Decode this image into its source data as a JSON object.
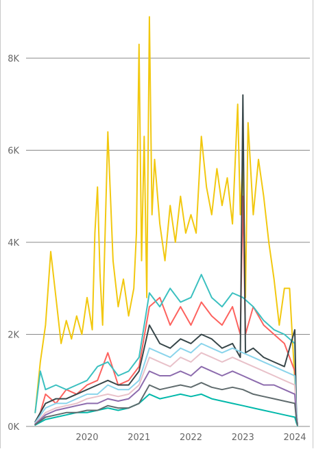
{
  "chart_data": {
    "type": "line",
    "title": "",
    "xlabel": "",
    "ylabel": "",
    "grid": true,
    "legend": "none",
    "x_range": [
      2019.0,
      2024.05
    ],
    "ylim": [
      0,
      9000
    ],
    "y_ticks": [
      {
        "value": 0,
        "label": "0K"
      },
      {
        "value": 2000,
        "label": "2K"
      },
      {
        "value": 4000,
        "label": "4K"
      },
      {
        "value": 6000,
        "label": "6K"
      },
      {
        "value": 8000,
        "label": "8K"
      }
    ],
    "x_ticks": [
      {
        "value": 2020,
        "label": "2020"
      },
      {
        "value": 2021,
        "label": "2021"
      },
      {
        "value": 2022,
        "label": "2022"
      },
      {
        "value": 2023,
        "label": "2023"
      },
      {
        "value": 2024,
        "label": "2024"
      }
    ],
    "series": [
      {
        "color": "#F2C80F",
        "x": [
          2019.0,
          2019.1,
          2019.2,
          2019.3,
          2019.4,
          2019.5,
          2019.6,
          2019.7,
          2019.8,
          2019.9,
          2020.0,
          2020.1,
          2020.15,
          2020.2,
          2020.25,
          2020.3,
          2020.4,
          2020.5,
          2020.6,
          2020.7,
          2020.8,
          2020.9,
          2020.95,
          2021.0,
          2021.05,
          2021.1,
          2021.15,
          2021.2,
          2021.25,
          2021.3,
          2021.4,
          2021.5,
          2021.6,
          2021.7,
          2021.8,
          2021.9,
          2022.0,
          2022.1,
          2022.2,
          2022.3,
          2022.4,
          2022.5,
          2022.6,
          2022.7,
          2022.8,
          2022.9,
          2022.95,
          2023.0,
          2023.05,
          2023.1,
          2023.2,
          2023.3,
          2023.4,
          2023.5,
          2023.6,
          2023.7,
          2023.8,
          2023.9,
          2024.0,
          2024.02,
          2024.05
        ],
        "y": [
          300,
          1400,
          2200,
          3800,
          2800,
          1800,
          2300,
          1900,
          2400,
          2000,
          2800,
          2100,
          4200,
          5200,
          3300,
          2200,
          6400,
          3600,
          2600,
          3200,
          2400,
          3000,
          4200,
          8300,
          3600,
          6300,
          2800,
          8900,
          4600,
          5800,
          4400,
          3600,
          4800,
          4000,
          5000,
          4200,
          4600,
          4200,
          6300,
          5200,
          4600,
          5600,
          4800,
          5400,
          4400,
          7000,
          4600,
          5800,
          2800,
          6600,
          4600,
          5800,
          5000,
          4000,
          3200,
          2200,
          3000,
          3000,
          1000,
          300,
          50
        ]
      },
      {
        "color": "#FD625E",
        "x": [
          2019.0,
          2019.1,
          2019.2,
          2019.4,
          2019.6,
          2019.8,
          2020.0,
          2020.2,
          2020.4,
          2020.6,
          2020.8,
          2021.0,
          2021.2,
          2021.4,
          2021.6,
          2021.8,
          2022.0,
          2022.2,
          2022.4,
          2022.6,
          2022.8,
          2022.95,
          2023.0,
          2023.05,
          2023.2,
          2023.4,
          2023.6,
          2023.8,
          2024.0,
          2024.03,
          2024.05
        ],
        "y": [
          50,
          300,
          700,
          500,
          800,
          700,
          900,
          1000,
          1600,
          900,
          1000,
          1300,
          2600,
          2800,
          2200,
          2600,
          2200,
          2700,
          2400,
          2200,
          2600,
          2000,
          5000,
          2000,
          2600,
          2200,
          2000,
          1800,
          1200,
          300,
          50
        ]
      },
      {
        "color": "#3BC0C0",
        "x": [
          2019.0,
          2019.1,
          2019.2,
          2019.4,
          2019.6,
          2019.8,
          2020.0,
          2020.2,
          2020.4,
          2020.6,
          2020.8,
          2021.0,
          2021.2,
          2021.4,
          2021.6,
          2021.8,
          2022.0,
          2022.2,
          2022.4,
          2022.6,
          2022.8,
          2023.0,
          2023.2,
          2023.4,
          2023.6,
          2023.8,
          2024.0,
          2024.03,
          2024.05
        ],
        "y": [
          300,
          1200,
          800,
          900,
          800,
          900,
          1000,
          1300,
          1400,
          1100,
          1200,
          1500,
          2900,
          2600,
          3000,
          2700,
          2800,
          3300,
          2800,
          2600,
          2900,
          2800,
          2600,
          2300,
          2100,
          2000,
          1800,
          400,
          50
        ]
      },
      {
        "color": "#374649",
        "x": [
          2019.0,
          2019.2,
          2019.4,
          2019.6,
          2019.8,
          2020.0,
          2020.2,
          2020.4,
          2020.6,
          2020.8,
          2021.0,
          2021.2,
          2021.4,
          2021.6,
          2021.8,
          2022.0,
          2022.2,
          2022.4,
          2022.6,
          2022.8,
          2022.95,
          2023.0,
          2023.05,
          2023.2,
          2023.4,
          2023.6,
          2023.8,
          2024.0,
          2024.03,
          2024.05
        ],
        "y": [
          100,
          500,
          600,
          600,
          700,
          800,
          900,
          1000,
          900,
          900,
          1200,
          2200,
          1800,
          1700,
          1900,
          1800,
          2000,
          1900,
          1700,
          1800,
          1500,
          7200,
          1600,
          1700,
          1500,
          1400,
          1300,
          2100,
          300,
          50
        ]
      },
      {
        "color": "#8AD4EB",
        "x": [
          2019.0,
          2019.2,
          2019.4,
          2019.6,
          2019.8,
          2020.0,
          2020.2,
          2020.4,
          2020.6,
          2020.8,
          2021.0,
          2021.2,
          2021.4,
          2021.6,
          2021.8,
          2022.0,
          2022.2,
          2022.4,
          2022.6,
          2022.8,
          2023.0,
          2023.2,
          2023.4,
          2023.6,
          2023.8,
          2024.0,
          2024.03,
          2024.05
        ],
        "y": [
          80,
          400,
          500,
          500,
          600,
          700,
          700,
          900,
          800,
          800,
          1000,
          1700,
          1600,
          1500,
          1700,
          1600,
          1800,
          1700,
          1600,
          1700,
          1600,
          1500,
          1400,
          1300,
          1200,
          1100,
          300,
          50
        ]
      },
      {
        "color": "#E8C1C9",
        "x": [
          2019.0,
          2019.2,
          2019.4,
          2019.6,
          2019.8,
          2020.0,
          2020.2,
          2020.4,
          2020.6,
          2020.8,
          2021.0,
          2021.2,
          2021.4,
          2021.6,
          2021.8,
          2022.0,
          2022.2,
          2022.4,
          2022.6,
          2022.8,
          2023.0,
          2023.2,
          2023.4,
          2023.6,
          2023.8,
          2024.0,
          2024.03,
          2024.05
        ],
        "y": [
          60,
          300,
          400,
          450,
          500,
          600,
          650,
          700,
          650,
          700,
          900,
          1500,
          1400,
          1300,
          1500,
          1400,
          1600,
          1500,
          1400,
          1500,
          1400,
          1300,
          1200,
          1100,
          1000,
          900,
          250,
          50
        ]
      },
      {
        "color": "#8C6BAD",
        "x": [
          2019.0,
          2019.2,
          2019.4,
          2019.6,
          2019.8,
          2020.0,
          2020.2,
          2020.4,
          2020.6,
          2020.8,
          2021.0,
          2021.2,
          2021.4,
          2021.6,
          2021.8,
          2022.0,
          2022.2,
          2022.4,
          2022.6,
          2022.8,
          2023.0,
          2023.2,
          2023.4,
          2023.6,
          2023.8,
          2024.0,
          2024.03,
          2024.05
        ],
        "y": [
          50,
          250,
          350,
          400,
          450,
          500,
          500,
          600,
          550,
          600,
          800,
          1200,
          1100,
          1100,
          1200,
          1100,
          1300,
          1200,
          1100,
          1200,
          1100,
          1000,
          900,
          900,
          800,
          700,
          200,
          50
        ]
      },
      {
        "color": "#01B8AA",
        "x": [
          2019.0,
          2019.2,
          2019.4,
          2019.6,
          2019.8,
          2020.0,
          2020.2,
          2020.4,
          2020.6,
          2020.8,
          2021.0,
          2021.2,
          2021.4,
          2021.6,
          2021.8,
          2022.0,
          2022.2,
          2022.4,
          2022.6,
          2022.8,
          2023.0,
          2023.2,
          2023.4,
          2023.6,
          2023.8,
          2024.0,
          2024.03,
          2024.05
        ],
        "y": [
          30,
          150,
          200,
          250,
          300,
          300,
          350,
          400,
          350,
          400,
          500,
          700,
          600,
          650,
          700,
          650,
          700,
          600,
          550,
          500,
          450,
          400,
          350,
          300,
          250,
          200,
          80,
          20
        ]
      },
      {
        "color": "#5F6B6D",
        "x": [
          2019.0,
          2019.2,
          2019.4,
          2019.6,
          2019.8,
          2020.0,
          2020.2,
          2020.4,
          2020.6,
          2020.8,
          2021.0,
          2021.2,
          2021.4,
          2021.6,
          2021.8,
          2022.0,
          2022.2,
          2022.4,
          2022.6,
          2022.8,
          2023.0,
          2023.2,
          2023.4,
          2023.6,
          2023.8,
          2024.0,
          2024.03,
          2024.05
        ],
        "y": [
          40,
          200,
          250,
          300,
          300,
          350,
          350,
          450,
          400,
          400,
          500,
          900,
          800,
          850,
          900,
          850,
          950,
          850,
          800,
          850,
          800,
          700,
          650,
          600,
          550,
          500,
          150,
          30
        ]
      }
    ]
  }
}
